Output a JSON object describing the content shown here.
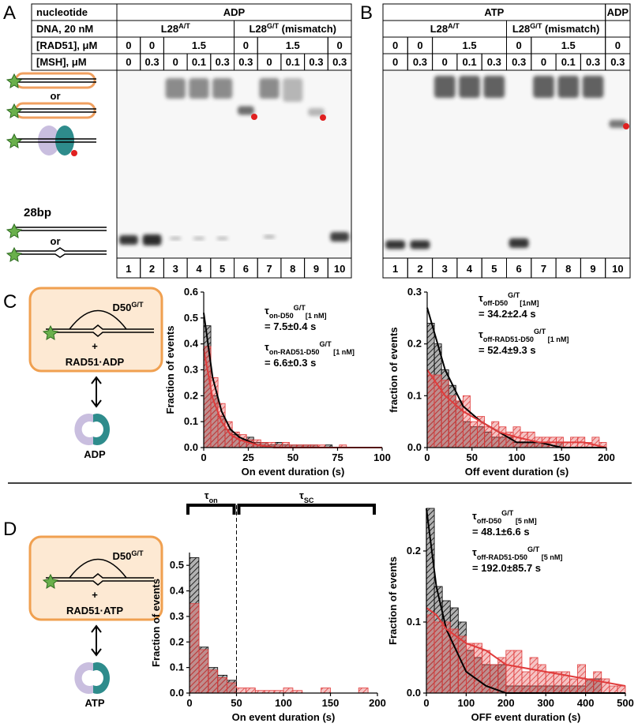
{
  "panels": {
    "a": "A",
    "b": "B",
    "c": "C",
    "d": "D"
  },
  "gel_a": {
    "rows": [
      [
        "nucleotide",
        "ADP"
      ],
      [
        "DNA, 20 nM",
        {
          "text": "L28",
          "sup": "A/T"
        },
        {
          "text": "L28",
          "sup": "G/T",
          "text2": " (mismatch)"
        }
      ],
      [
        "[RAD51], μM",
        "0",
        "0",
        "1.5",
        "0",
        "1.5",
        "0"
      ],
      [
        "[MSH], μM",
        "0",
        "0.3",
        "0",
        "0.1",
        "0.3",
        "0.3",
        "0",
        "0.1",
        "0.3",
        "0.3"
      ]
    ],
    "lanes": [
      "1",
      "2",
      "3",
      "4",
      "5",
      "6",
      "7",
      "8",
      "9",
      "10"
    ]
  },
  "gel_a_legend": {
    "or1": "or",
    "size": "28bp",
    "or2": "or"
  },
  "gel_b": {
    "rows": [
      [
        "ATP",
        "ADP"
      ],
      [
        {
          "text": "L28",
          "sup": "A/T"
        },
        {
          "text": "L28",
          "sup": "G/T",
          "text2": " (mismatch)"
        }
      ],
      [
        "0",
        "0",
        "1.5",
        "0",
        "1.5",
        "0"
      ],
      [
        "0",
        "0.3",
        "0",
        "0.1",
        "0.3",
        "0.3",
        "0",
        "0.1",
        "0.3",
        "0.3"
      ]
    ],
    "lanes": [
      "1",
      "2",
      "3",
      "4",
      "5",
      "6",
      "7",
      "8",
      "9",
      "10"
    ]
  },
  "cartoon_c": {
    "dna": {
      "text": "D50",
      "sup": "G/T"
    },
    "plus": "+",
    "complex": "RAD51·ADP",
    "nucleotide": "ADP"
  },
  "cartoon_d": {
    "dna": {
      "text": "D50",
      "sup": "G/T"
    },
    "plus": "+",
    "complex": "RAD51·ATP",
    "nucleotide": "ATP"
  },
  "chart_data": [
    {
      "type": "histogram",
      "y_label": "Fraction of events",
      "x_label": "On event duration (s)",
      "xlim": [
        0,
        100
      ],
      "xticks": [
        0,
        25,
        50,
        75,
        100
      ],
      "ylim": [
        0,
        0.6
      ],
      "yticks": [
        {
          "value": 0,
          "label": "0.0"
        },
        0.1,
        0.2,
        0.3,
        0.4,
        0.5,
        0.6
      ],
      "bins": [
        0,
        4,
        8,
        12,
        16,
        20,
        24,
        28,
        32,
        36,
        40,
        44,
        48,
        52,
        56,
        60,
        64,
        68,
        72,
        76,
        80,
        84,
        88,
        92,
        96,
        100
      ],
      "series": [
        {
          "color": "#000000",
          "values": [
            0.47,
            0.2,
            0.12,
            0.07,
            0.05,
            0.03,
            0.04,
            0.02,
            0.02,
            0.01,
            0.02,
            0.01,
            0.01,
            0.01,
            0.01,
            0.01,
            0,
            0.01,
            0,
            0,
            0,
            0,
            0,
            0,
            0
          ]
        },
        {
          "color": "#e03c3c",
          "values": [
            0.39,
            0.27,
            0.17,
            0.1,
            0.06,
            0.05,
            0.03,
            0.03,
            0.02,
            0.02,
            0.01,
            0.02,
            0.01,
            0.01,
            0.01,
            0.01,
            0.01,
            0,
            0,
            0.01,
            0,
            0,
            0,
            0,
            0
          ]
        }
      ],
      "fits": [
        {
          "color": "#000000",
          "x": [
            0,
            5,
            10,
            15,
            20,
            30,
            40,
            60,
            80,
            100
          ],
          "values": [
            0.52,
            0.27,
            0.14,
            0.07,
            0.04,
            0.01,
            0,
            0,
            0,
            0
          ]
        },
        {
          "color": "#e03c3c",
          "x": [
            0,
            5,
            10,
            15,
            20,
            30,
            40,
            60,
            80,
            100
          ],
          "values": [
            0.38,
            0.19,
            0.1,
            0.05,
            0.03,
            0.01,
            0,
            0,
            0,
            0
          ]
        }
      ],
      "annotations": [
        {
          "color": "#000000",
          "label": {
            "text": "τ",
            "sub": "on-D50",
            "sup": "G/T",
            "sub2": "[1 nM]"
          },
          "value": "= 7.5±0.4 s"
        },
        {
          "color": "#c0282d",
          "label": {
            "text": "τ",
            "sub": "on-RAD51-D50",
            "sup": "G/T",
            "sub2": " [1 nM]"
          },
          "value": "= 6.6±0.3 s"
        }
      ]
    },
    {
      "type": "histogram",
      "y_label": "fraction of events",
      "x_label": "Off event duration (s)",
      "xlim": [
        0,
        200
      ],
      "xticks": [
        0,
        50,
        100,
        150,
        200
      ],
      "ylim": [
        0,
        0.3
      ],
      "yticks": [
        {
          "value": 0,
          "label": "0.0"
        },
        0.1,
        0.2,
        0.3
      ],
      "bins": [
        0,
        8,
        16,
        24,
        32,
        40,
        48,
        56,
        64,
        72,
        80,
        88,
        96,
        104,
        112,
        120,
        128,
        136,
        144,
        152,
        160,
        168,
        176,
        184,
        192,
        200
      ],
      "series": [
        {
          "color": "#000000",
          "values": [
            0.24,
            0.2,
            0.15,
            0.12,
            0.09,
            0.05,
            0.04,
            0.04,
            0.03,
            0.02,
            0.02,
            0.02,
            0.01,
            0.01,
            0.01,
            0.01,
            0.01,
            0,
            0.01,
            0,
            0,
            0,
            0,
            0,
            0
          ]
        },
        {
          "color": "#e03c3c",
          "values": [
            0.14,
            0.14,
            0.13,
            0.1,
            0.09,
            0.1,
            0.05,
            0.06,
            0.04,
            0.05,
            0.04,
            0.03,
            0.04,
            0.03,
            0.03,
            0.02,
            0.02,
            0.02,
            0.02,
            0.01,
            0.02,
            0.02,
            0.01,
            0.02,
            0.01
          ]
        }
      ],
      "fits": [
        {
          "color": "#000000",
          "x": [
            0,
            20,
            40,
            60,
            80,
            100,
            125,
            150,
            175,
            200
          ],
          "values": [
            0.27,
            0.15,
            0.08,
            0.05,
            0.03,
            0.01,
            0.01,
            0,
            0,
            0
          ]
        },
        {
          "color": "#e03c3c",
          "x": [
            0,
            20,
            40,
            60,
            80,
            100,
            125,
            150,
            175,
            200
          ],
          "values": [
            0.15,
            0.1,
            0.07,
            0.05,
            0.03,
            0.02,
            0.01,
            0.01,
            0.01,
            0
          ]
        }
      ],
      "annotations": [
        {
          "color": "#000000",
          "label": {
            "text": "τ",
            "sub": "off-D50",
            "sup": "G/T",
            "sub2": "[1nM]"
          },
          "value": "= 34.2±2.4 s"
        },
        {
          "color": "#c0282d",
          "label": {
            "text": "τ",
            "sub": "off-RAD51-D50",
            "sup": "G/T",
            "sub2": " [1 nM]"
          },
          "value": "= 52.4±9.3 s"
        }
      ]
    },
    {
      "type": "histogram",
      "y_label": "Fraction of events",
      "x_label": "On event duration (s)",
      "xlim": [
        0,
        200
      ],
      "xticks": [
        0,
        50,
        100,
        150,
        200
      ],
      "ylim": [
        0,
        0.55
      ],
      "yticks": [
        {
          "value": 0,
          "label": "0.0"
        },
        0.1,
        0.2,
        0.3,
        0.4,
        0.5
      ],
      "bins": [
        0,
        10,
        20,
        30,
        40,
        50,
        60,
        70,
        80,
        90,
        100,
        110,
        120,
        130,
        140,
        150,
        160,
        170,
        180,
        190,
        200
      ],
      "series": [
        {
          "color": "#000000",
          "values": [
            0.53,
            0.18,
            0.1,
            0.07,
            0.05,
            0,
            0,
            0,
            0,
            0,
            0,
            0,
            0,
            0,
            0,
            0,
            0,
            0,
            0,
            0
          ]
        },
        {
          "color": "#e03c3c",
          "values": [
            0.35,
            0.17,
            0.09,
            0.06,
            0.04,
            0.02,
            0.02,
            0.01,
            0.01,
            0.01,
            0.02,
            0.01,
            0,
            0,
            0.02,
            0,
            0,
            0,
            0.02,
            0
          ]
        }
      ],
      "threshold": 50,
      "brackets": [
        {
          "text": "τ",
          "sub": "on"
        },
        {
          "text": "τ",
          "sub": "SC"
        }
      ]
    },
    {
      "type": "histogram",
      "y_label": "Fraction of events",
      "x_label": "OFF event duration (s)",
      "xlim": [
        0,
        500
      ],
      "xticks": [
        0,
        100,
        200,
        300,
        400,
        500
      ],
      "ylim": [
        0,
        0.26
      ],
      "yticks": [
        {
          "value": 0,
          "label": "0.0"
        },
        0.1,
        0.2
      ],
      "bins": [
        0,
        20,
        40,
        60,
        80,
        100,
        120,
        140,
        160,
        180,
        200,
        220,
        240,
        260,
        280,
        300,
        320,
        340,
        360,
        380,
        400,
        420,
        440,
        460,
        480,
        500
      ],
      "series": [
        {
          "color": "#000000",
          "values": [
            0.26,
            0.15,
            0.13,
            0.12,
            0.1,
            0.06,
            0.05,
            0.04,
            0.04,
            0.04,
            0.01,
            0.01,
            0.01,
            0.01,
            0.01,
            0.01,
            0.01,
            0.01,
            0.01,
            0.01,
            0.02,
            0.02,
            0,
            0,
            0
          ]
        },
        {
          "color": "#e03c3c",
          "values": [
            0.11,
            0.1,
            0.1,
            0.09,
            0.08,
            0.07,
            0.07,
            0.06,
            0.04,
            0.05,
            0.06,
            0.06,
            0.03,
            0.05,
            0.04,
            0.03,
            0.03,
            0.03,
            0.02,
            0.04,
            0.02,
            0.03,
            0.02,
            0.01,
            0.01
          ]
        }
      ],
      "fits": [
        {
          "color": "#000000",
          "x": [
            0,
            25,
            50,
            100,
            150,
            200,
            300,
            400,
            500
          ],
          "values": [
            0.26,
            0.15,
            0.09,
            0.03,
            0.01,
            0,
            0,
            0,
            0
          ]
        },
        {
          "color": "#e03c3c",
          "x": [
            0,
            25,
            50,
            100,
            150,
            200,
            300,
            400,
            500
          ],
          "values": [
            0.12,
            0.11,
            0.09,
            0.07,
            0.06,
            0.04,
            0.03,
            0.02,
            0.01
          ]
        }
      ],
      "annotations": [
        {
          "color": "#000000",
          "label": {
            "text": "τ",
            "sub": "off-D50",
            "sup": "G/T",
            "sub2": " [5 nM]"
          },
          "value": "= 48.1±6.6 s"
        },
        {
          "color": "#c0282d",
          "label": {
            "text": "τ",
            "sub": "off-RAD51-D50",
            "sup": "G/T",
            "sub2": " [5 nM]"
          },
          "value": "= 192.0±85.7 s"
        }
      ]
    }
  ]
}
